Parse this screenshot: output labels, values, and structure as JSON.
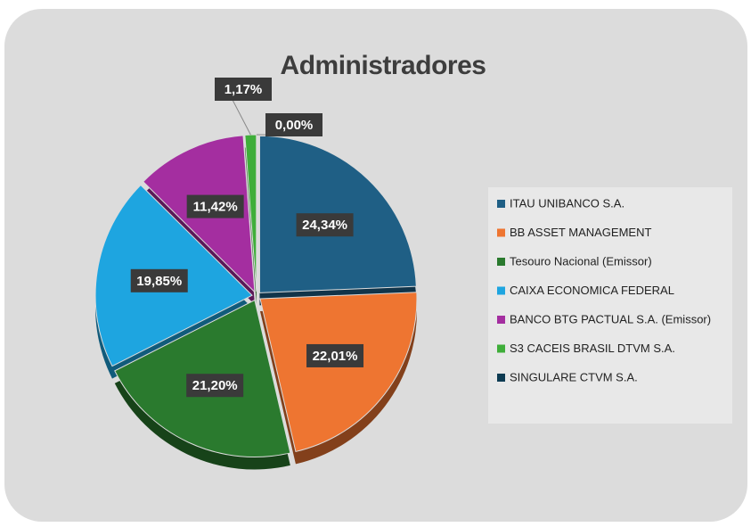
{
  "chart_data": {
    "type": "pie",
    "title": "Administradores",
    "categories": [
      "ITAU UNIBANCO S.A.",
      "BB ASSET MANAGEMENT",
      "Tesouro Nacional (Emissor)",
      "CAIXA ECONOMICA FEDERAL",
      "BANCO BTG PACTUAL S.A. (Emissor)",
      "S3 CACEIS BRASIL DTVM S.A.",
      "SINGULARE CTVM S.A."
    ],
    "values": [
      24.34,
      22.01,
      21.2,
      19.85,
      11.42,
      1.17,
      0.0
    ],
    "value_labels": [
      "24,34%",
      "22,01%",
      "21,20%",
      "19,85%",
      "11,42%",
      "1,17%",
      "0,00%"
    ],
    "colors": [
      "#1f5f85",
      "#ee7531",
      "#2a7a2e",
      "#1ea5e0",
      "#a42ea0",
      "#3fae3a",
      "#0d3b52"
    ],
    "legend": "right"
  }
}
